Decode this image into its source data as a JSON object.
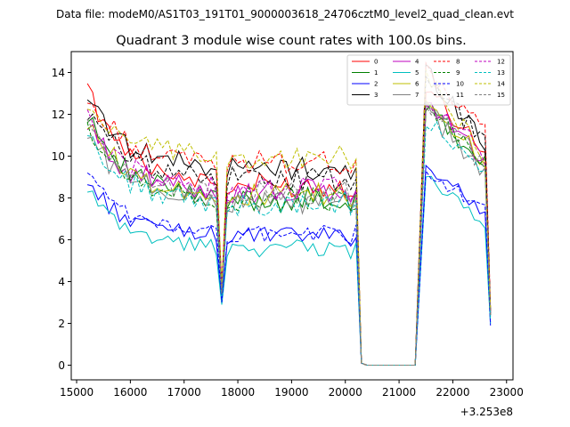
{
  "suptitle": "Data file: modeM0/AS1T03_191T01_9000003618_24706cztM0_level2_quad_clean.evt",
  "chart_data": {
    "type": "line",
    "title": "Quadrant 3 module wise count rates with 100.0s bins.",
    "xlabel": "",
    "ylabel": "",
    "x_offset_label": "+3.253e8",
    "xlim": [
      14900,
      23120
    ],
    "ylim": [
      -0.7,
      15
    ],
    "xticks": [
      15000,
      16000,
      17000,
      18000,
      19000,
      20000,
      21000,
      22000,
      23000
    ],
    "xtick_labels": [
      "15000",
      "16000",
      "17000",
      "18000",
      "19000",
      "20000",
      "21000",
      "22000",
      "23000"
    ],
    "yticks": [
      0,
      2,
      4,
      6,
      8,
      10,
      12,
      14
    ],
    "ytick_labels": [
      "0",
      "2",
      "4",
      "6",
      "8",
      "10",
      "12",
      "14"
    ],
    "grid": false,
    "legend_position": "top-right",
    "x_start": 15200,
    "x_step": 100,
    "segments": {
      "s1": {
        "start": 15200,
        "end": 17700
      },
      "dip": {
        "start": 17700,
        "end": 17800
      },
      "s2": {
        "start": 17800,
        "end": 20200
      },
      "gap": {
        "start": 20300,
        "end": 21300
      },
      "s3": {
        "start": 21500,
        "end": 22600
      },
      "end_x": 22700
    },
    "series": [
      {
        "name": "0",
        "color": "#ff0000",
        "dash": false,
        "start": 13.1,
        "mid": 8.6,
        "s3start": 13.3,
        "s3end": 10.3,
        "dip": 3.6,
        "end": 2.6
      },
      {
        "name": "1",
        "color": "#008000",
        "dash": false,
        "start": 12.0,
        "mid": 7.9,
        "s3start": 12.4,
        "s3end": 9.4,
        "dip": 3.5,
        "end": 2.5
      },
      {
        "name": "2",
        "color": "#0000ff",
        "dash": false,
        "start": 8.6,
        "mid": 6.2,
        "s3start": 9.5,
        "s3end": 7.4,
        "dip": 3.0,
        "end": 1.9
      },
      {
        "name": "3",
        "color": "#000000",
        "dash": false,
        "start": 12.8,
        "mid": 9.4,
        "s3start": 14.1,
        "s3end": 10.7,
        "dip": 3.7,
        "end": 2.7
      },
      {
        "name": "4",
        "color": "#bf00bf",
        "dash": false,
        "start": 11.3,
        "mid": 8.3,
        "s3start": 12.7,
        "s3end": 9.8,
        "dip": 3.5,
        "end": 2.5
      },
      {
        "name": "5",
        "color": "#00bfbf",
        "dash": false,
        "start": 8.2,
        "mid": 5.6,
        "s3start": 9.2,
        "s3end": 6.6,
        "dip": 2.9,
        "end": 2.0
      },
      {
        "name": "6",
        "color": "#bfbf00",
        "dash": false,
        "start": 11.6,
        "mid": 8.1,
        "s3start": 12.9,
        "s3end": 9.6,
        "dip": 3.5,
        "end": 2.4
      },
      {
        "name": "7",
        "color": "#808080",
        "dash": false,
        "start": 11.0,
        "mid": 7.8,
        "s3start": 12.2,
        "s3end": 9.2,
        "dip": 3.4,
        "end": 2.4
      },
      {
        "name": "8",
        "color": "#ff0000",
        "dash": true,
        "start": 12.5,
        "mid": 9.7,
        "s3start": 14.0,
        "s3end": 11.3,
        "dip": 3.8,
        "end": 2.8
      },
      {
        "name": "9",
        "color": "#008000",
        "dash": true,
        "start": 11.2,
        "mid": 7.9,
        "s3start": 12.3,
        "s3end": 9.6,
        "dip": 3.4,
        "end": 2.4
      },
      {
        "name": "10",
        "color": "#0000ff",
        "dash": true,
        "start": 9.0,
        "mid": 6.3,
        "s3start": 9.3,
        "s3end": 7.5,
        "dip": 3.0,
        "end": 2.0
      },
      {
        "name": "11",
        "color": "#000000",
        "dash": true,
        "start": 12.0,
        "mid": 8.9,
        "s3start": 13.6,
        "s3end": 10.8,
        "dip": 3.6,
        "end": 2.6
      },
      {
        "name": "12",
        "color": "#bf00bf",
        "dash": true,
        "start": 11.8,
        "mid": 8.4,
        "s3start": 12.9,
        "s3end": 10.0,
        "dip": 3.5,
        "end": 2.5
      },
      {
        "name": "13",
        "color": "#00bfbf",
        "dash": true,
        "start": 10.7,
        "mid": 7.7,
        "s3start": 11.8,
        "s3end": 9.0,
        "dip": 3.3,
        "end": 2.3
      },
      {
        "name": "14",
        "color": "#bfbf00",
        "dash": true,
        "start": 12.3,
        "mid": 9.9,
        "s3start": 13.9,
        "s3end": 9.9,
        "dip": 3.8,
        "end": 2.7
      },
      {
        "name": "15",
        "color": "#808080",
        "dash": true,
        "start": 11.4,
        "mid": 8.2,
        "s3start": 12.6,
        "s3end": 9.5,
        "dip": 3.4,
        "end": 2.4
      }
    ]
  }
}
